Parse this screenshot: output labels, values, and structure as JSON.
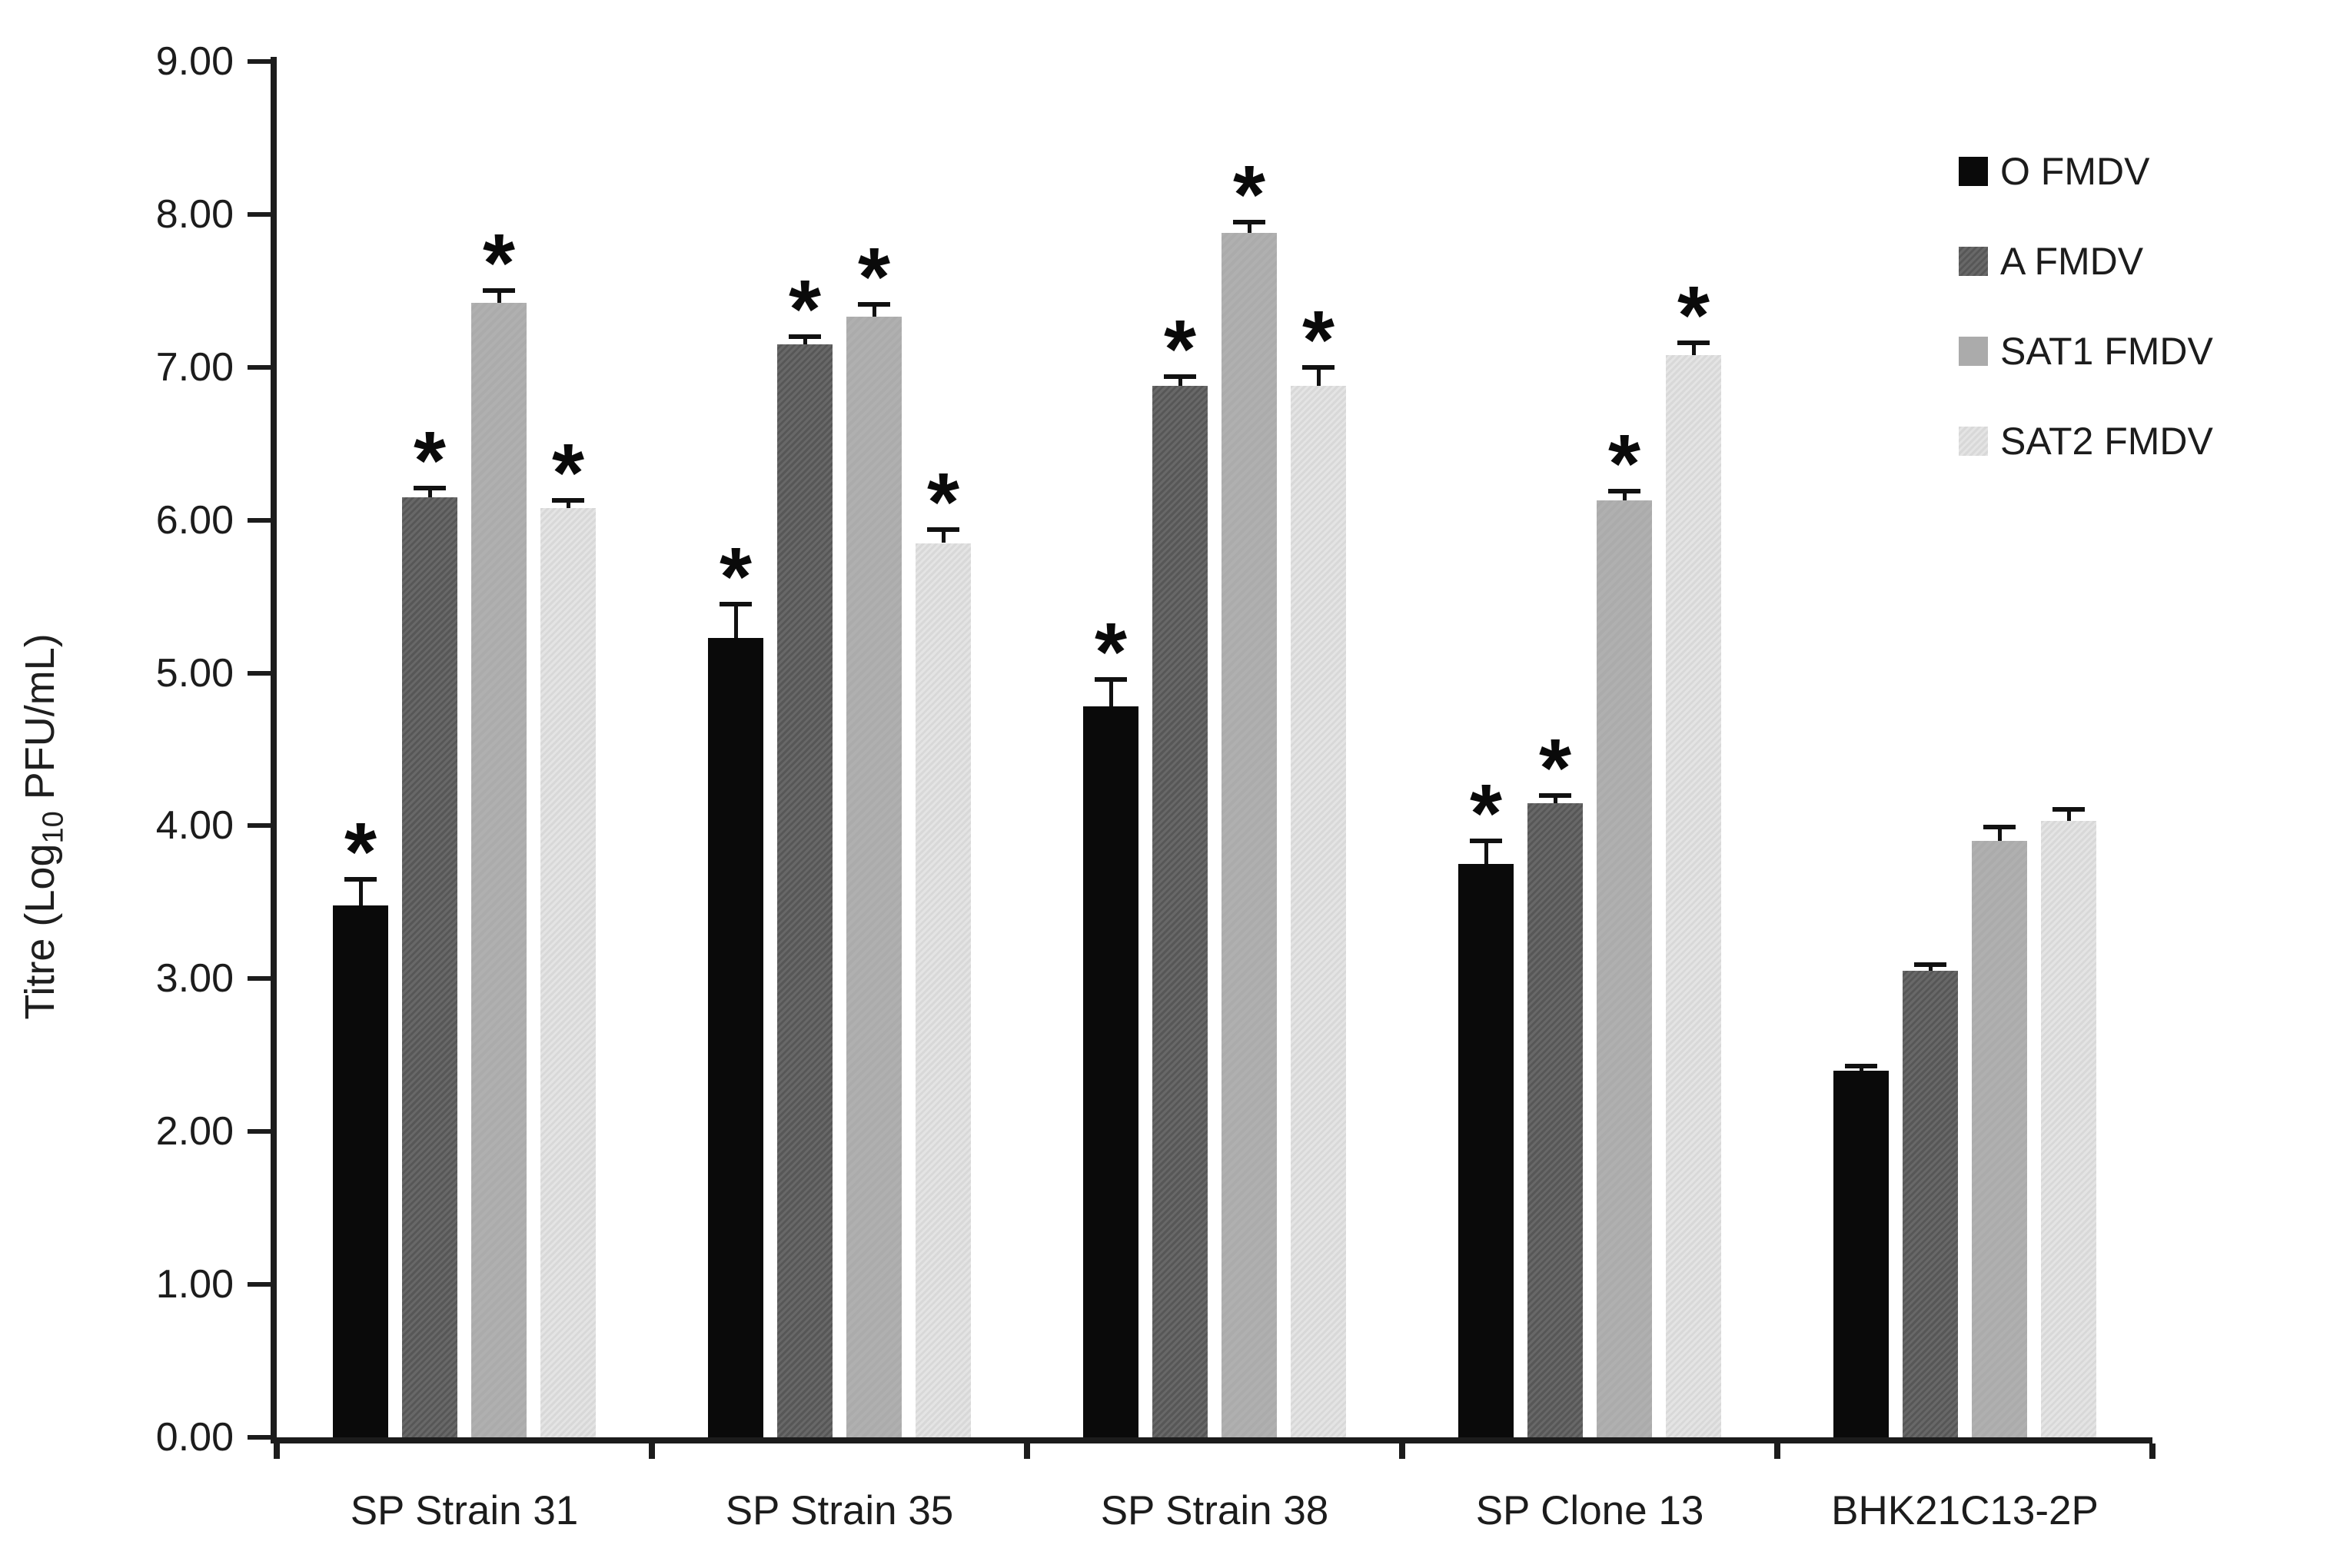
{
  "chart_data": {
    "type": "bar",
    "title": "",
    "xlabel": "",
    "ylabel": "Titre (Log10 PFU/mL)",
    "ylabel_parts": {
      "pre": "Titre (Log",
      "sub": "10",
      "post": " PFU/mL)"
    },
    "ylim": [
      0,
      9
    ],
    "ytick_step": 1.0,
    "ytick_labels": [
      "0.00",
      "1.00",
      "2.00",
      "3.00",
      "4.00",
      "5.00",
      "6.00",
      "7.00",
      "8.00",
      "9.00"
    ],
    "grid": "off",
    "legend_position": "top-right",
    "significance_marker": "*",
    "categories": [
      "SP Strain 31",
      "SP Strain 35",
      "SP Strain 38",
      "SP Clone 13",
      "BHK21C13-2P"
    ],
    "series": [
      {
        "name": "O FMDV",
        "color": "#0a0a0a",
        "values": [
          3.48,
          5.23,
          4.78,
          3.75,
          2.4
        ],
        "errors": [
          0.17,
          0.22,
          0.18,
          0.15,
          0.03
        ],
        "significant": [
          true,
          true,
          true,
          true,
          false
        ]
      },
      {
        "name": "A FMDV",
        "color": "#575757",
        "values": [
          6.15,
          7.15,
          6.88,
          4.15,
          3.05
        ],
        "errors": [
          0.06,
          0.05,
          0.06,
          0.05,
          0.04
        ],
        "significant": [
          true,
          true,
          true,
          true,
          false
        ]
      },
      {
        "name": "SAT1 FMDV",
        "color": "#ababab",
        "values": [
          7.42,
          7.33,
          7.88,
          6.13,
          3.9
        ],
        "errors": [
          0.08,
          0.08,
          0.07,
          0.06,
          0.09
        ],
        "significant": [
          true,
          true,
          true,
          true,
          false
        ]
      },
      {
        "name": "SAT2 FMDV",
        "color": "#e4e4e4",
        "values": [
          6.08,
          5.85,
          6.88,
          7.08,
          4.03
        ],
        "errors": [
          0.05,
          0.09,
          0.12,
          0.08,
          0.08
        ],
        "significant": [
          true,
          true,
          true,
          true,
          false
        ]
      }
    ]
  }
}
